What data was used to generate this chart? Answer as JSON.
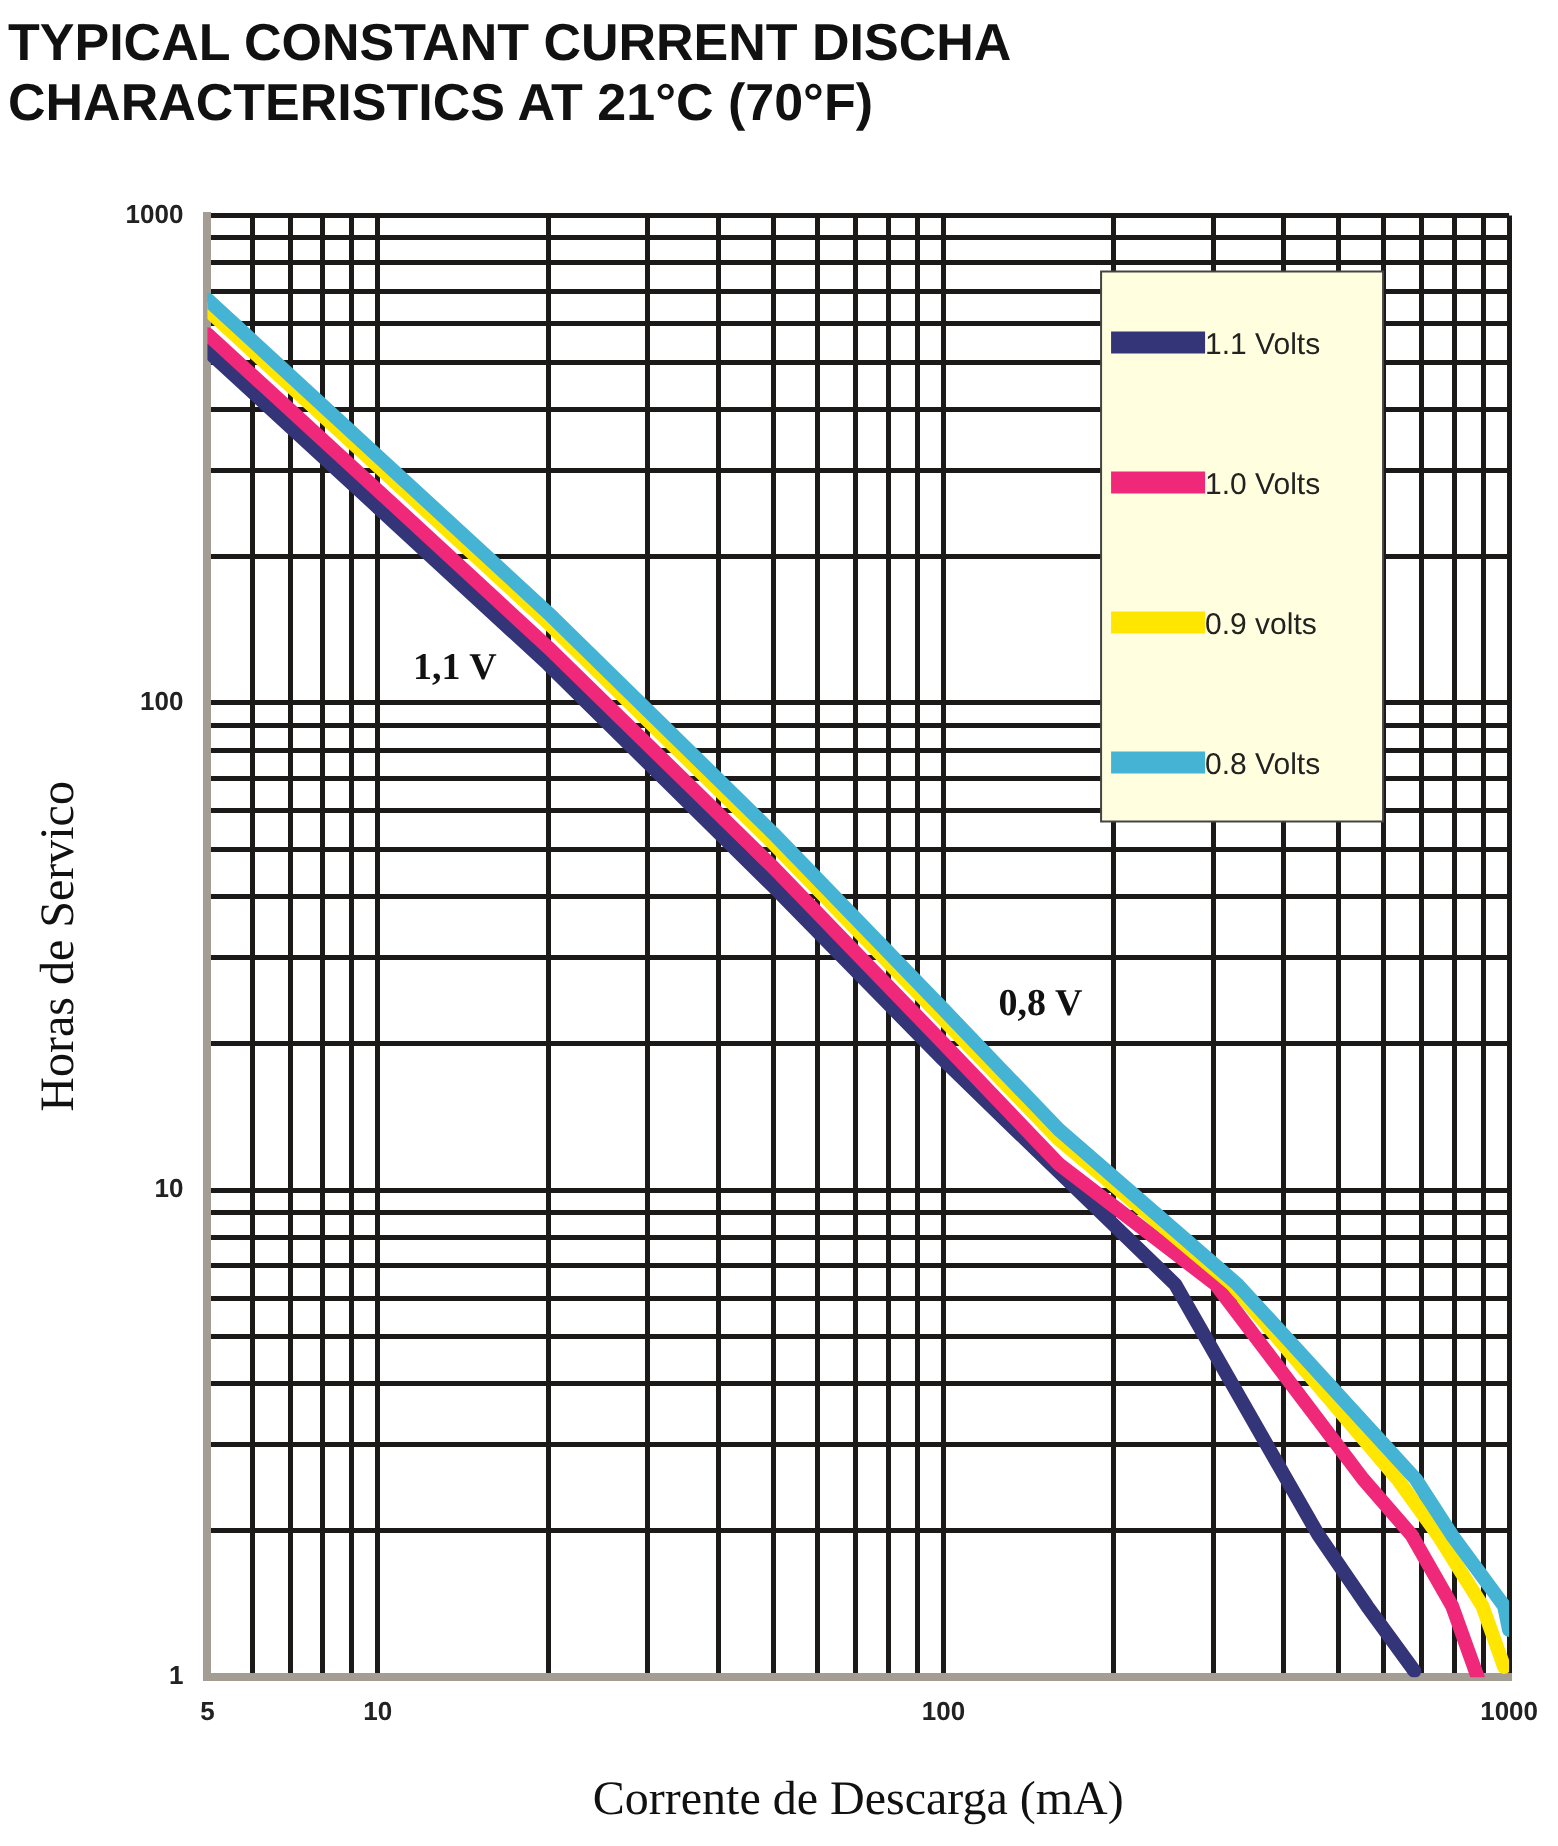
{
  "chart_data": {
    "type": "line",
    "title": "TYPICAL CONSTANT CURRENT DISCHA\nCHARACTERISTICS AT 21°C (70°F)",
    "xlabel": "Corrente de Descarga (mA)",
    "ylabel": "Horas de Servico",
    "log": "xy",
    "grid": true,
    "legend": "top right",
    "marker": "none",
    "line_style": "solid",
    "xlim": [
      5,
      1000
    ],
    "ylim": [
      1,
      1000
    ],
    "xticks": [
      5,
      {
        "value": 6,
        "label": null
      },
      {
        "value": 7,
        "label": null
      },
      {
        "value": 8,
        "label": null
      },
      {
        "value": 9,
        "label": null
      },
      10,
      {
        "value": 20,
        "label": null
      },
      {
        "value": 30,
        "label": null
      },
      {
        "value": 40,
        "label": null
      },
      {
        "value": 50,
        "label": null
      },
      {
        "value": 60,
        "label": null
      },
      {
        "value": 70,
        "label": null
      },
      {
        "value": 80,
        "label": null
      },
      {
        "value": 90,
        "label": null
      },
      100,
      {
        "value": 200,
        "label": null
      },
      {
        "value": 300,
        "label": null
      },
      {
        "value": 400,
        "label": null
      },
      {
        "value": 500,
        "label": null
      },
      {
        "value": 600,
        "label": null
      },
      {
        "value": 700,
        "label": null
      },
      {
        "value": 800,
        "label": null
      },
      {
        "value": 900,
        "label": null
      },
      1000
    ],
    "yticks": [
      1,
      {
        "value": 2,
        "label": null
      },
      {
        "value": 3,
        "label": null
      },
      {
        "value": 4,
        "label": null
      },
      {
        "value": 5,
        "label": null
      },
      {
        "value": 6,
        "label": null
      },
      {
        "value": 7,
        "label": null
      },
      {
        "value": 8,
        "label": null
      },
      {
        "value": 9,
        "label": null
      },
      10,
      {
        "value": 20,
        "label": null
      },
      {
        "value": 30,
        "label": null
      },
      {
        "value": 40,
        "label": null
      },
      {
        "value": 50,
        "label": null
      },
      {
        "value": 60,
        "label": null
      },
      {
        "value": 70,
        "label": null
      },
      {
        "value": 80,
        "label": null
      },
      {
        "value": 90,
        "label": null
      },
      100,
      {
        "value": 200,
        "label": null
      },
      {
        "value": 300,
        "label": null
      },
      {
        "value": 400,
        "label": null
      },
      {
        "value": 500,
        "label": null
      },
      {
        "value": 600,
        "label": null
      },
      {
        "value": 700,
        "label": null
      },
      {
        "value": 800,
        "label": null
      },
      {
        "value": 900,
        "label": null
      },
      1000
    ],
    "series": [
      {
        "name": "1.1 Volts",
        "color": "#343478",
        "x": [
          5,
          10,
          20,
          50,
          100,
          134,
          257,
          404,
          460,
          561,
          680
        ],
        "values": [
          528,
          252,
          120,
          42,
          18.5,
          13.3,
          6.4,
          2.55,
          1.96,
          1.4,
          1.03
        ]
      },
      {
        "name": "1.0 Volts",
        "color": "#f0287a",
        "x": [
          5,
          10,
          20,
          50,
          100,
          160,
          303,
          552,
          672,
          793,
          880
        ],
        "values": [
          571,
          273,
          130,
          46,
          20,
          11.3,
          6.4,
          2.55,
          1.96,
          1.4,
          1.0
        ]
      },
      {
        "name": "0.9 volts",
        "color": "#ffe600",
        "x": [
          5,
          10,
          20,
          50,
          100,
          160,
          324,
          635,
          748,
          897,
          980
        ],
        "values": [
          641,
          306,
          146,
          51.5,
          22.4,
          12.7,
          6.4,
          2.55,
          1.96,
          1.4,
          1.05
        ]
      },
      {
        "name": "0.8 Volts",
        "color": "#45b4d4",
        "x": [
          5,
          10,
          20,
          50,
          100,
          160,
          331,
          684,
          792,
          980,
          1000
        ],
        "values": [
          673,
          321,
          153,
          54,
          23.5,
          13.3,
          6.4,
          2.55,
          1.96,
          1.4,
          1.25
        ]
      }
    ],
    "annotations": [
      "1,1 V",
      "0,8 V"
    ]
  }
}
